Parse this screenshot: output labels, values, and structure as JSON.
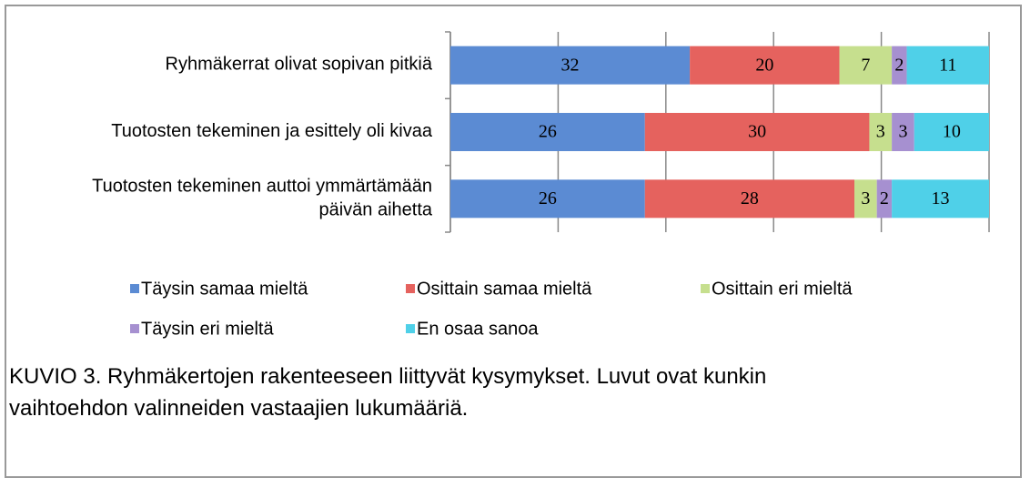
{
  "chart_data": {
    "type": "stacked-barh",
    "categories": [
      "Ryhmäkerrat olivat sopivan pitkiä",
      "Tuotosten tekeminen ja esittely oli kivaa",
      "Tuotosten tekeminen auttoi ymmärtämään päivän aihetta"
    ],
    "series": [
      {
        "name": "Täysin samaa mieltä",
        "color": "#5b8bd3",
        "values": [
          32,
          26,
          26
        ]
      },
      {
        "name": "Osittain samaa mieltä",
        "color": "#e5625e",
        "values": [
          20,
          30,
          28
        ]
      },
      {
        "name": "Osittain eri mieltä",
        "color": "#c6df8e",
        "values": [
          7,
          3,
          3
        ]
      },
      {
        "name": "Täysin eri mieltä",
        "color": "#a690d0",
        "values": [
          2,
          3,
          2
        ]
      },
      {
        "name": "En osaa sanoa",
        "color": "#4fd0e8",
        "values": [
          11,
          10,
          13
        ]
      }
    ],
    "xlim": [
      0,
      72
    ],
    "xticks": [
      0,
      14.4,
      28.8,
      43.2,
      57.6,
      72
    ],
    "grid": true,
    "caption": "KUVIO 3. Ryhmäkertojen rakenteeseen liittyvät kysymykset. Luvut ovat kunkin vaihtoehdon valinneiden vastaajien lukumääriä."
  }
}
